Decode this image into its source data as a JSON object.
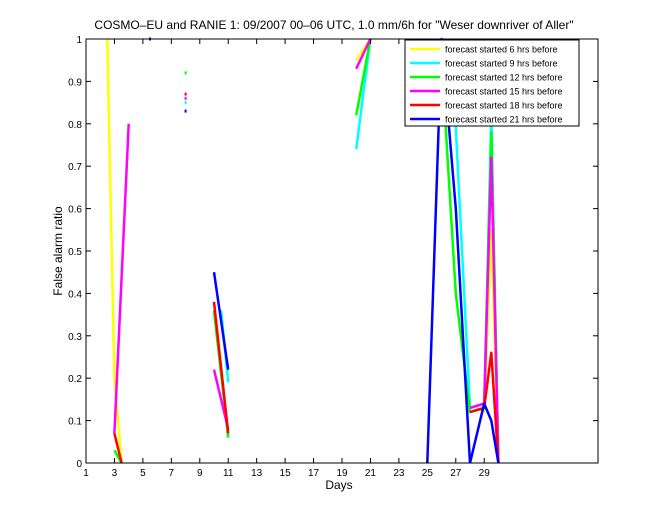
{
  "chart_data": {
    "type": "line",
    "title": "COSMO–EU and RANIE 1: 09/2007 00–06 UTC, 1.0 mm/6h for \"Weser downriver of Aller\"",
    "xlabel": "Days",
    "ylabel": "False alarm ratio",
    "xlim": [
      1,
      37
    ],
    "ylim": [
      0,
      1
    ],
    "xticks": [
      1,
      3,
      5,
      7,
      9,
      11,
      13,
      15,
      17,
      19,
      21,
      23,
      25,
      27,
      29
    ],
    "xtick_labels": [
      "1",
      "3",
      "5",
      "7",
      "9",
      "11",
      "13",
      "15",
      "17",
      "19",
      "21",
      "23",
      "25",
      "27",
      "29"
    ],
    "yticks": [
      0,
      0.1,
      0.2,
      0.3,
      0.4,
      0.5,
      0.6,
      0.7,
      0.8,
      0.9,
      1
    ],
    "ytick_labels": [
      "0",
      "0.1",
      "0.2",
      "0.3",
      "0.4",
      "0.5",
      "0.6",
      "0.7",
      "0.8",
      "0.9",
      "1"
    ],
    "grid": false,
    "legend_position": "top-right",
    "series": [
      {
        "name": "forecast started 6 hrs before",
        "color": "#ffff00",
        "segments": [
          [
            [
              2.5,
              1.0
            ],
            [
              3,
              0.2
            ],
            [
              3.5,
              0.0
            ]
          ],
          [
            [
              10.5,
              0.35
            ],
            [
              11,
              0.2
            ]
          ],
          [
            [
              20,
              0.95
            ],
            [
              21,
              1.0
            ]
          ],
          [
            [
              28.5,
              0.13
            ],
            [
              29,
              0.12
            ],
            [
              29.5,
              0.55
            ],
            [
              30,
              0.0
            ]
          ]
        ],
        "points": []
      },
      {
        "name": "forecast started 9 hrs before",
        "color": "#00ffff",
        "segments": [
          [
            [
              10.5,
              0.36
            ],
            [
              11,
              0.19
            ]
          ],
          [
            [
              20,
              0.74
            ],
            [
              21,
              1.0
            ]
          ],
          [
            [
              26,
              1.0
            ],
            [
              27,
              0.79
            ],
            [
              28,
              0.13
            ],
            [
              29,
              0.14
            ],
            [
              29.5,
              0.82
            ],
            [
              30,
              0.0
            ]
          ]
        ],
        "points": [
          [
            8,
            0.85
          ]
        ]
      },
      {
        "name": "forecast started 12 hrs before",
        "color": "#00ff00",
        "segments": [
          [
            [
              3,
              0.03
            ],
            [
              3.5,
              0.0
            ]
          ],
          [
            [
              10,
              0.36
            ],
            [
              11,
              0.06
            ]
          ],
          [
            [
              20,
              0.82
            ],
            [
              21,
              1.0
            ]
          ],
          [
            [
              26,
              0.95
            ],
            [
              27,
              0.4
            ],
            [
              28,
              0.12
            ],
            [
              29,
              0.13
            ],
            [
              29.5,
              0.78
            ],
            [
              30,
              0.0
            ]
          ]
        ],
        "points": [
          [
            8,
            0.92
          ]
        ]
      },
      {
        "name": "forecast started 15 hrs before",
        "color": "#ff00ff",
        "segments": [
          [
            [
              3,
              0.07
            ],
            [
              4,
              0.8
            ]
          ],
          [
            [
              10,
              0.22
            ],
            [
              11,
              0.08
            ]
          ],
          [
            [
              20,
              0.93
            ],
            [
              21,
              1.0
            ]
          ],
          [
            [
              28,
              0.13
            ],
            [
              29,
              0.14
            ],
            [
              29.5,
              0.72
            ],
            [
              30,
              0.0
            ]
          ]
        ],
        "points": [
          [
            8,
            0.86
          ]
        ]
      },
      {
        "name": "forecast started 18 hrs before",
        "color": "#ff0000",
        "segments": [
          [
            [
              3,
              0.07
            ],
            [
              3.5,
              0.0
            ]
          ],
          [
            [
              10,
              0.38
            ],
            [
              11,
              0.07
            ]
          ],
          [
            [
              28,
              0.12
            ],
            [
              29,
              0.13
            ],
            [
              29.5,
              0.26
            ],
            [
              30,
              0.0
            ]
          ]
        ],
        "points": [
          [
            8,
            0.87
          ]
        ]
      },
      {
        "name": "forecast started 21 hrs before",
        "color": "#0000ff",
        "segments": [
          [
            [
              25,
              0.0
            ],
            [
              26,
              1.0
            ],
            [
              27,
              0.6
            ],
            [
              28,
              0.0
            ]
          ],
          [
            [
              28,
              0.0
            ],
            [
              29,
              0.14
            ],
            [
              29.5,
              0.1
            ],
            [
              30,
              0.0
            ]
          ],
          [
            [
              10,
              0.45
            ],
            [
              11,
              0.22
            ]
          ]
        ],
        "points": [
          [
            8,
            0.83
          ],
          [
            5.5,
            1.0
          ]
        ]
      }
    ]
  }
}
